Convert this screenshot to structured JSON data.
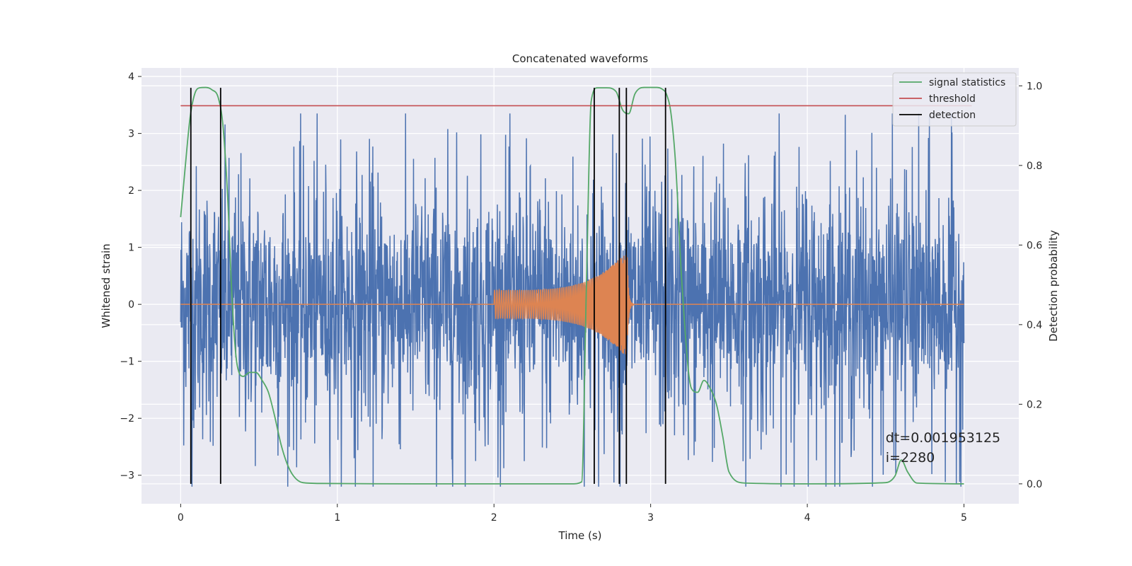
{
  "chart_data": {
    "type": "line",
    "title": "Concatenated waveforms",
    "xlabel": "Time (s)",
    "ylabel": "Whitened strain",
    "y2label": "Detection probability",
    "xlim": [
      -0.25,
      5.35
    ],
    "ylim": [
      -3.5,
      4.15
    ],
    "y2lim": [
      -0.05,
      1.045
    ],
    "x_ticks": [
      0,
      1,
      2,
      3,
      4,
      5
    ],
    "y_ticks": [
      -3,
      -2,
      -1,
      0,
      1,
      2,
      3,
      4
    ],
    "y2_ticks": [
      0.0,
      0.2,
      0.4,
      0.6,
      0.8,
      1.0
    ],
    "x_tick_labels": [
      "0",
      "1",
      "2",
      "3",
      "4",
      "5"
    ],
    "y_tick_labels": [
      "−3",
      "−2",
      "−1",
      "0",
      "1",
      "2",
      "3",
      "4"
    ],
    "y2_tick_labels": [
      "0.0",
      "0.2",
      "0.4",
      "0.6",
      "0.8",
      "1.0"
    ],
    "grid": true,
    "legend_position": "top-right",
    "legend": [
      {
        "label": "signal statistics",
        "color": "#55a868"
      },
      {
        "label": "threshold",
        "color": "#c44e52"
      },
      {
        "label": "detection",
        "color": "#000000"
      }
    ],
    "colors": {
      "noise": "#4c72b0",
      "template": "#dd8452",
      "statistic": "#55a868",
      "threshold": "#c44e52",
      "detection": "#000000",
      "background": "#eaeaf2",
      "grid": "#ffffff"
    },
    "series": [
      {
        "axis": "left",
        "color": "#4c72b0",
        "kind": "noise",
        "x_range": [
          0,
          5
        ],
        "sample_interval": 0.001953125,
        "typical_envelope": 1.0,
        "peak_range": [
          -3.2,
          3.35
        ]
      },
      {
        "axis": "left",
        "color": "#dd8452",
        "kind": "chirp",
        "x_range": [
          0,
          5
        ],
        "chirp_start": 2.0,
        "chirp_merger": 2.85,
        "amplitude_start": 0.25,
        "amplitude_peak": 0.95
      },
      {
        "name": "signal statistics",
        "axis": "right",
        "color": "#55a868",
        "x": [
          0.0,
          0.03,
          0.06,
          0.09,
          0.12,
          0.16,
          0.2,
          0.24,
          0.27,
          0.3,
          0.33,
          0.36,
          0.4,
          0.44,
          0.48,
          0.52,
          0.56,
          0.6,
          0.64,
          0.68,
          0.72,
          0.78,
          0.9,
          1.5,
          2.0,
          2.5,
          2.56,
          2.59,
          2.62,
          2.66,
          2.72,
          2.78,
          2.82,
          2.86,
          2.9,
          2.96,
          3.04,
          3.08,
          3.1,
          3.13,
          3.16,
          3.2,
          3.26,
          3.3,
          3.34,
          3.38,
          3.42,
          3.46,
          3.5,
          3.6,
          4.0,
          4.5,
          4.56,
          4.6,
          4.64,
          4.7,
          5.0
        ],
        "y": [
          0.67,
          0.8,
          0.92,
          0.98,
          0.995,
          0.996,
          0.99,
          0.97,
          0.9,
          0.72,
          0.45,
          0.3,
          0.27,
          0.28,
          0.28,
          0.26,
          0.23,
          0.17,
          0.1,
          0.05,
          0.02,
          0.003,
          0.001,
          0.0,
          0.0,
          0.0,
          0.005,
          0.5,
          0.96,
          0.995,
          0.995,
          0.985,
          0.94,
          0.93,
          0.98,
          0.996,
          0.996,
          0.99,
          0.98,
          0.93,
          0.8,
          0.5,
          0.24,
          0.23,
          0.26,
          0.24,
          0.2,
          0.12,
          0.03,
          0.002,
          0.0,
          0.003,
          0.02,
          0.06,
          0.03,
          0.002,
          0.0
        ]
      },
      {
        "name": "threshold",
        "axis": "right",
        "color": "#c44e52",
        "x": [
          0,
          5.05
        ],
        "y": [
          0.95,
          0.95
        ]
      }
    ],
    "detections": [
      0.065,
      0.255,
      2.64,
      2.8,
      2.845,
      3.095
    ],
    "detection_range": [
      0.0,
      0.995
    ],
    "annotations": [
      {
        "text": "dt=0.001953125",
        "x": 4.5,
        "y": -2.42
      },
      {
        "text": " i=2280",
        "x": 4.5,
        "y": -2.77
      }
    ]
  }
}
